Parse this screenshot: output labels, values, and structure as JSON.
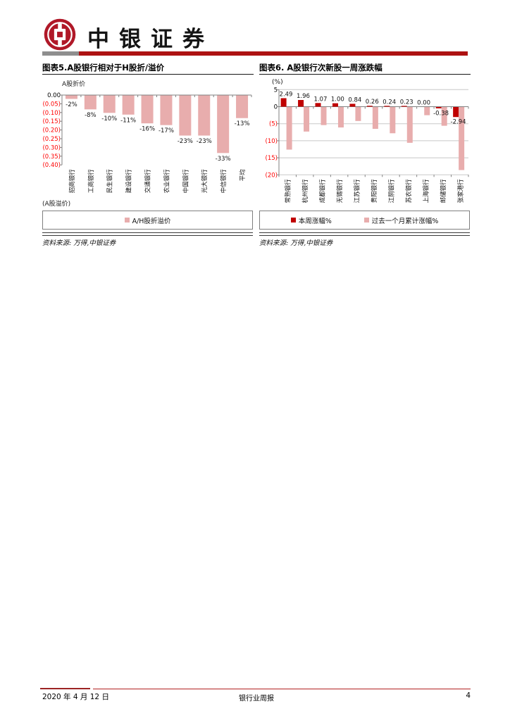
{
  "header": {
    "brand": "中银证券"
  },
  "colors": {
    "logo_red": "#B01828",
    "header_bar_red": "#AE1212",
    "header_bar_gray": "#8E8E8E",
    "tick_red": "#FF0000",
    "axis_gray": "#808080",
    "grid_gray": "#C8C8C8",
    "series_dark_red": "#C00000",
    "series_pink": "#E8ADAD",
    "footer_thick_red": "#9C2424",
    "footer_thin_red": "#B22222"
  },
  "chart_data": [
    {
      "type": "bar",
      "title": "图表5.A股银行相对于H股折/溢价",
      "plot_top_label": "A股折价",
      "plot_bottom_label": "(A股溢价)",
      "categories": [
        "招商银行",
        "工商银行",
        "民生银行",
        "建设银行",
        "交通银行",
        "农业银行",
        "中国银行",
        "光大银行",
        "中信银行",
        "平均"
      ],
      "values": [
        -2,
        -8,
        -10,
        -11,
        -16,
        -17,
        -23,
        -23,
        -33,
        -13
      ],
      "value_labels": [
        "-2%",
        "-8%",
        "-10%",
        "-11%",
        "-16%",
        "-17%",
        "-23%",
        "-23%",
        "-33%",
        "-13%"
      ],
      "unit": "%",
      "ylim": [
        -40,
        0
      ],
      "ytick_labels": [
        "0.00",
        "(0.05)",
        "(0.10)",
        "(0.15)",
        "(0.20)",
        "(0.25)",
        "(0.30)",
        "(0.35)",
        "(0.40)"
      ],
      "legend_label": "A/H股折溢价",
      "source": "资料来源: 万得,中银证券",
      "grid": false,
      "legend_position": "bottom"
    },
    {
      "type": "bar",
      "title": "图表6. A股银行次新股一周涨跌幅",
      "unit_label": "(%)",
      "categories": [
        "常熟银行",
        "杭州银行",
        "成都银行",
        "无锡银行",
        "江苏银行",
        "贵阳银行",
        "江阴银行",
        "苏农银行",
        "上海银行",
        "邮储银行",
        "张家港行"
      ],
      "series": [
        {
          "name": "本周涨幅%",
          "color": "#C00000",
          "values": [
            2.49,
            1.96,
            1.07,
            1.0,
            0.84,
            0.26,
            0.24,
            0.23,
            0.0,
            -0.38,
            -2.94
          ],
          "labels": [
            "2.49",
            "1.96",
            "1.07",
            "1.00",
            "0.84",
            "0.26",
            "0.24",
            "0.23",
            "0.00",
            "-0.38",
            "-2.94"
          ]
        },
        {
          "name": "过去一个月累计涨幅%",
          "color": "#E8ADAD",
          "values": [
            -12.5,
            -7.2,
            -5.3,
            -6.0,
            -4.1,
            -6.4,
            -7.7,
            -10.5,
            -2.4,
            -5.5,
            -18.5
          ]
        }
      ],
      "unit": "%",
      "ylim": [
        -20,
        5
      ],
      "ytick_labels": [
        "5",
        "0",
        "(5)",
        "(10)",
        "(15)",
        "(20)"
      ],
      "source": "资料来源: 万得,中银证券",
      "grid": true,
      "legend_position": "bottom"
    }
  ],
  "footer": {
    "date": "2020 年 4 月 12 日",
    "report_name": "银行业周报",
    "page_number": "4"
  }
}
